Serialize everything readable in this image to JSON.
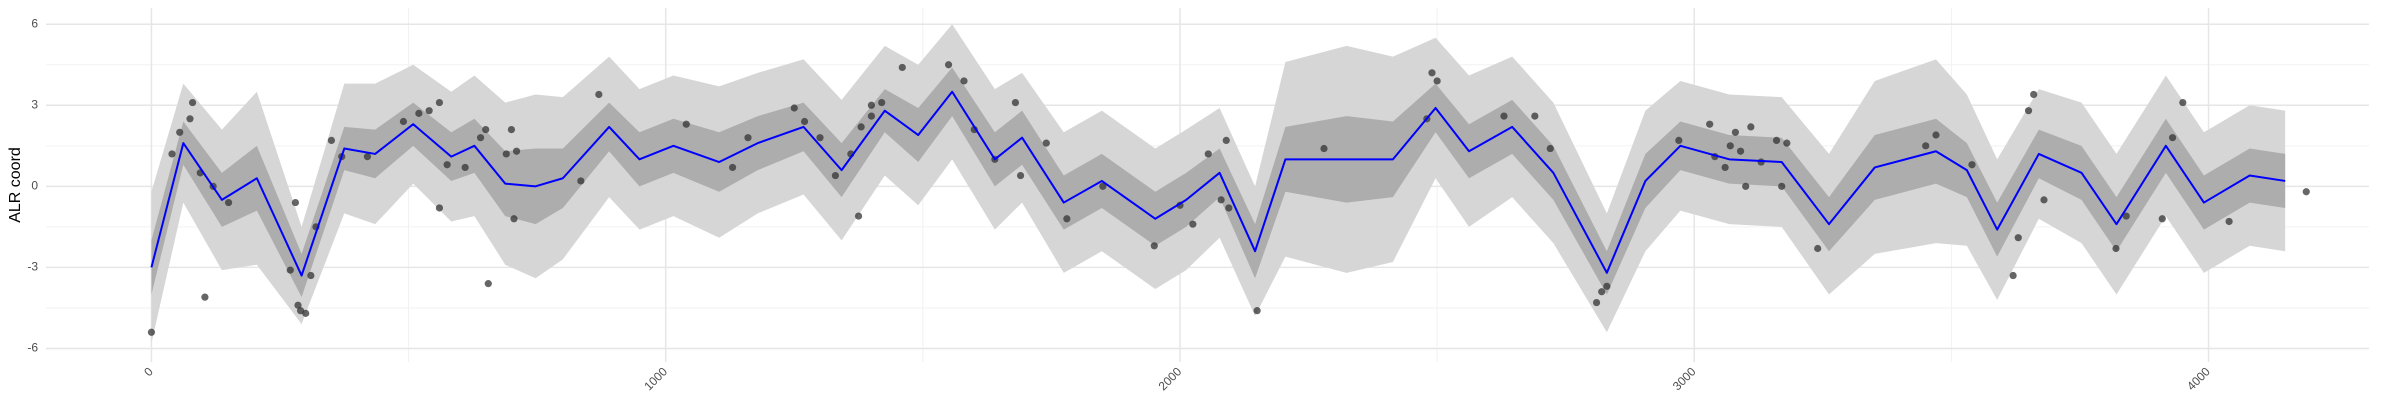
{
  "chart_data": {
    "type": "line",
    "y_label": "ALR coord",
    "x": [
      0,
      62,
      137,
      205,
      292,
      375,
      435,
      509,
      583,
      628,
      688,
      747,
      800,
      890,
      949,
      1015,
      1104,
      1179,
      1268,
      1342,
      1426,
      1491,
      1557,
      1640,
      1693,
      1774,
      1848,
      1952,
      2012,
      2077,
      2146,
      2205,
      2324,
      2414,
      2497,
      2562,
      2646,
      2726,
      2830,
      2905,
      2973,
      3068,
      3170,
      3262,
      3351,
      3470,
      3530,
      3589,
      3670,
      3753,
      3821,
      3917,
      3991,
      4080,
      4149
    ],
    "series": [
      {
        "color": "#0000ff",
        "values": [
          -3,
          1.6,
          -0.5,
          0.3,
          -3.3,
          1.4,
          1.2,
          2.3,
          1.1,
          1.5,
          0.1,
          0.0,
          0.3,
          2.2,
          1.0,
          1.5,
          0.9,
          1.6,
          2.2,
          0.6,
          2.8,
          1.9,
          3.5,
          1.0,
          1.8,
          -0.6,
          0.2,
          -1.2,
          -0.5,
          0.5,
          -2.4,
          1.0,
          1.0,
          1.0,
          2.9,
          1.3,
          2.2,
          0.5,
          -3.2,
          0.2,
          1.5,
          1.0,
          0.9,
          -1.4,
          0.7,
          1.3,
          0.6,
          -1.6,
          1.2,
          0.5,
          -1.4,
          1.5,
          -0.6,
          0.4,
          0.2
        ]
      }
    ],
    "bands": [
      {
        "color": "#d6d6d6",
        "lower": [
          -5.8,
          -0.6,
          -3.1,
          -2.9,
          -5.1,
          -1,
          -1.4,
          0.1,
          -1.3,
          -1.1,
          -2.9,
          -3.4,
          -2.7,
          -0.4,
          -1.6,
          -1.1,
          -1.9,
          -1.0,
          -0.3,
          -2.0,
          0.4,
          -0.7,
          1.0,
          -1.6,
          -0.6,
          -3.2,
          -2.4,
          -3.8,
          -3.1,
          -1.9,
          -4.8,
          -2.6,
          -3.2,
          -2.8,
          0.3,
          -1.5,
          -0.4,
          -2.1,
          -5.4,
          -2.4,
          -0.9,
          -1.4,
          -1.5,
          -4.0,
          -2.5,
          -2.1,
          -2.2,
          -4.2,
          -1.2,
          -2.1,
          -4.0,
          -1.1,
          -3.2,
          -2.2,
          -2.4
        ],
        "upper": [
          -0.2,
          3.8,
          2.1,
          3.5,
          -1.5,
          3.8,
          3.8,
          4.5,
          3.5,
          4.1,
          3.1,
          3.4,
          3.3,
          4.8,
          3.6,
          4.1,
          3.7,
          4.2,
          4.7,
          3.2,
          5.2,
          4.5,
          6.0,
          3.6,
          4.2,
          2.0,
          2.8,
          1.4,
          2.1,
          2.9,
          0,
          4.6,
          5.2,
          4.8,
          5.5,
          4.1,
          4.8,
          3.1,
          -1.0,
          2.8,
          3.9,
          3.4,
          3.3,
          1.2,
          3.9,
          4.7,
          3.4,
          1.0,
          3.6,
          3.1,
          1.2,
          4.1,
          2.0,
          3.0,
          2.8
        ]
      },
      {
        "color": "#adadad",
        "lower": [
          -4,
          0.8,
          -1.5,
          -0.9,
          -4.1,
          0.6,
          0.3,
          1.5,
          0.2,
          0.5,
          -1.1,
          -1.4,
          -0.8,
          1.3,
          0,
          0.5,
          -0.2,
          0.6,
          1.3,
          -0.4,
          2.0,
          0.9,
          2.6,
          0,
          0.8,
          -1.6,
          -0.8,
          -2.2,
          -1.5,
          -0.4,
          -3.4,
          -0.2,
          -0.6,
          -0.4,
          2.0,
          0.3,
          1.2,
          -0.5,
          -4.0,
          -0.8,
          0.6,
          0.1,
          0,
          -2.4,
          -0.5,
          0.1,
          -0.4,
          -2.6,
          0.3,
          -0.5,
          -2.4,
          0.5,
          -1.6,
          -0.6,
          -0.8
        ],
        "upper": [
          -2,
          2.4,
          0.5,
          1.5,
          -2.5,
          2.2,
          2.1,
          3.1,
          2.0,
          2.5,
          1.3,
          1.4,
          1.4,
          3.1,
          2.0,
          2.5,
          2.0,
          2.6,
          3.1,
          1.6,
          3.6,
          2.9,
          4.4,
          2.0,
          2.8,
          0.4,
          1.2,
          -0.2,
          0.5,
          1.4,
          -1.4,
          2.2,
          2.6,
          2.4,
          3.8,
          2.3,
          3.2,
          1.5,
          -2.4,
          1.2,
          2.4,
          1.9,
          1.8,
          -0.4,
          1.9,
          2.5,
          1.6,
          -0.6,
          2.1,
          1.5,
          -0.4,
          2.5,
          0.4,
          1.4,
          1.2
        ]
      }
    ],
    "points": {
      "color": "#333333",
      "x": [
        0,
        40,
        55,
        80,
        75,
        95,
        104,
        120,
        150,
        280,
        285,
        290,
        300,
        270,
        320,
        310,
        350,
        370,
        420,
        490,
        520,
        540,
        560,
        560,
        575,
        610,
        640,
        650,
        655,
        690,
        700,
        705,
        710,
        835,
        870,
        1040,
        1130,
        1160,
        1250,
        1270,
        1300,
        1330,
        1360,
        1375,
        1380,
        1400,
        1400,
        1420,
        1460,
        1550,
        1580,
        1600,
        1640,
        1680,
        1690,
        1740,
        1780,
        1850,
        1950,
        2000,
        2025,
        2055,
        2080,
        2095,
        2090,
        2150,
        2280,
        2490,
        2500,
        2480,
        2630,
        2690,
        2720,
        2810,
        2820,
        2830,
        2970,
        3030,
        3040,
        3060,
        3070,
        3080,
        3090,
        3100,
        3110,
        3130,
        3160,
        3170,
        3180,
        3240,
        3450,
        3470,
        3540,
        3620,
        3630,
        3650,
        3660,
        3680,
        3820,
        3840,
        3910,
        3930,
        3950,
        4040,
        4190
      ],
      "y": [
        -5.4,
        1.2,
        2.0,
        3.1,
        2.5,
        0.5,
        -4.1,
        0.0,
        -0.6,
        -0.6,
        -4.4,
        -4.6,
        -4.7,
        -3.1,
        -1.5,
        -3.3,
        1.7,
        1.1,
        1.1,
        2.4,
        2.7,
        2.8,
        3.1,
        -0.8,
        0.8,
        0.7,
        1.8,
        2.1,
        -3.6,
        1.2,
        2.1,
        -1.2,
        1.3,
        0.2,
        3.4,
        2.3,
        0.7,
        1.8,
        2.9,
        2.4,
        1.8,
        0.4,
        1.2,
        -1.1,
        2.2,
        2.6,
        3.0,
        3.1,
        4.4,
        4.5,
        3.9,
        2.1,
        1.0,
        3.1,
        0.4,
        1.6,
        -1.2,
        0.0,
        -2.2,
        -0.7,
        -1.4,
        1.2,
        -0.5,
        -0.8,
        1.7,
        -4.6,
        1.4,
        4.2,
        3.9,
        2.5,
        2.6,
        2.6,
        1.4,
        -4.3,
        -3.9,
        -3.7,
        1.7,
        2.3,
        1.1,
        0.7,
        1.5,
        2.0,
        1.3,
        0.0,
        2.2,
        0.9,
        1.7,
        0.0,
        1.6,
        -2.3,
        1.5,
        1.9,
        0.8,
        -3.3,
        -1.9,
        2.8,
        3.4,
        -0.5,
        -2.3,
        -1.1,
        -1.2,
        1.8,
        3.1,
        -1.3,
        -0.2
      ]
    },
    "xlim": [
      -205,
      4312
    ],
    "ylim": [
      -6.5,
      6.6
    ],
    "xticks": [
      0,
      1000,
      2000,
      3000,
      4000
    ],
    "yticks": [
      -6,
      -3,
      0,
      3,
      6
    ],
    "x_minor_ticks": [
      500,
      1500,
      2500,
      3500
    ],
    "y_minor_ticks": [
      -4.5,
      -1.5,
      1.5,
      4.5
    ],
    "grid": true
  }
}
